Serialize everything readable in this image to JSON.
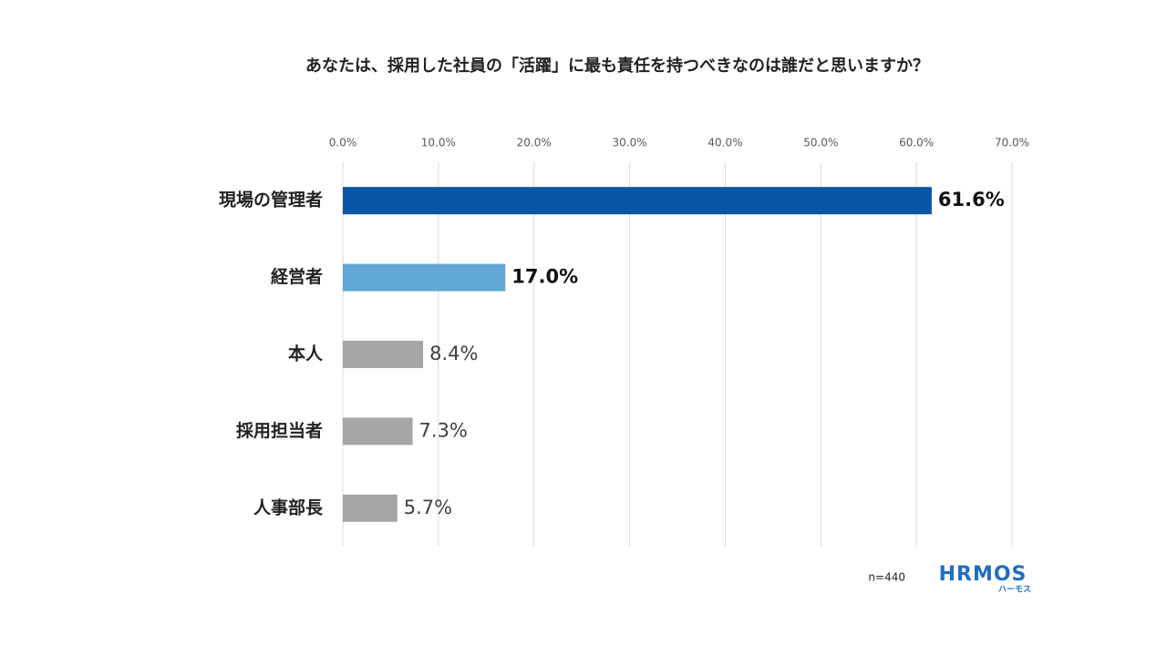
{
  "chart_data": {
    "type": "bar",
    "orientation": "horizontal",
    "title": "あなたは、採用した社員の「活躍」に最も責任を持つべきなのは誰だと思いますか？",
    "categories": [
      "現場の管理者",
      "経営者",
      "本人",
      "採用担当者",
      "人事部長"
    ],
    "values": [
      61.6,
      17.0,
      8.4,
      7.3,
      5.7
    ],
    "value_labels": [
      "61.6%",
      "17.0%",
      "8.4%",
      "7.3%",
      "5.7%"
    ],
    "colors": [
      "#0a56a5",
      "#62a8d4",
      "#a6a6a6",
      "#a6a6a6",
      "#a6a6a6"
    ],
    "xlim": [
      0,
      70
    ],
    "xticks": [
      {
        "value": 0,
        "label": "0.0%"
      },
      {
        "value": 10,
        "label": "10.0%"
      },
      {
        "value": 20,
        "label": "20.0%"
      },
      {
        "value": 30,
        "label": "30.0%"
      },
      {
        "value": 40,
        "label": "40.0%"
      },
      {
        "value": 50,
        "label": "50.0%"
      },
      {
        "value": 60,
        "label": "60.0%"
      },
      {
        "value": 70,
        "label": "70.0%"
      }
    ],
    "grid": true,
    "note": "n=440",
    "logo": {
      "text": "HRMOS",
      "subtext": "ハーモス"
    }
  }
}
